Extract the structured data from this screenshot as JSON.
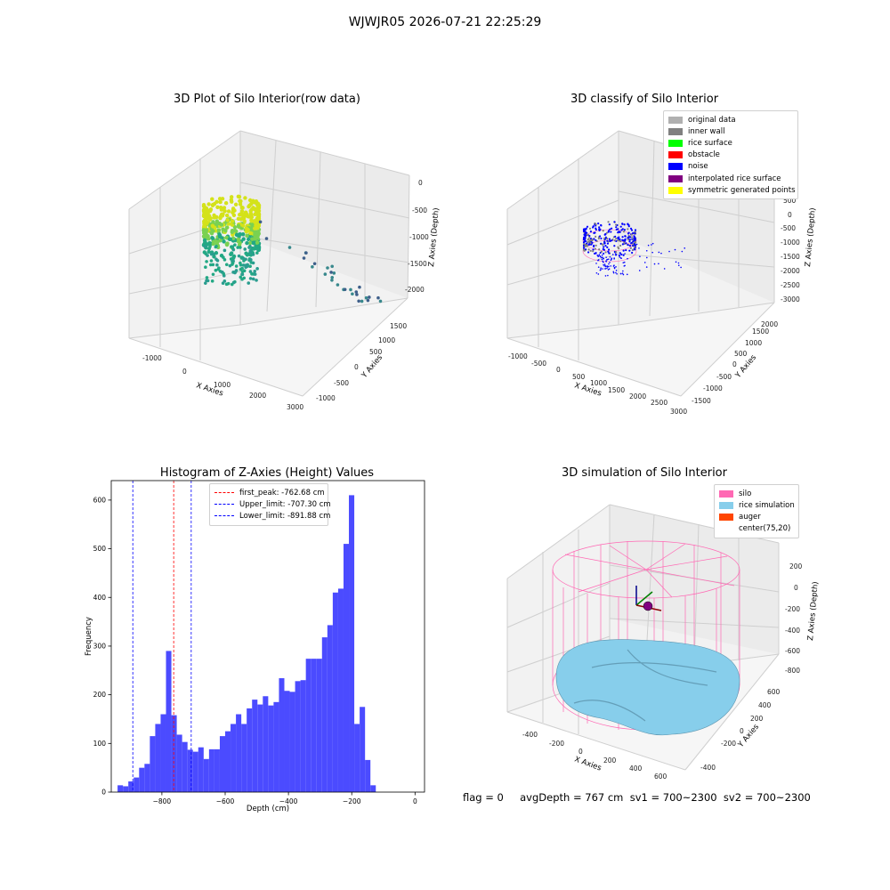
{
  "figure": {
    "suptitle": "WJWJR05 2026-07-21 22:25:29",
    "footer": "flag = 0     avgDepth = 767 cm  sv1 = 700~2300  sv2 = 700~2300"
  },
  "panels": {
    "raw": {
      "title": "3D Plot of Silo Interior(row data)",
      "xlabel": "X Axies",
      "ylabel": "Y Axies",
      "zlabel": "Z Axies (Depth)",
      "xticks": [
        "-1000",
        "0",
        "1000",
        "2000",
        "3000"
      ],
      "yticks": [
        "-1000",
        "-500",
        "0",
        "500",
        "1000",
        "1500"
      ],
      "zticks": [
        "0",
        "-500",
        "-1000",
        "-1500",
        "-2000"
      ]
    },
    "classify": {
      "title": "3D classify of Silo Interior",
      "xlabel": "X Axies",
      "ylabel": "Y Axies",
      "zlabel": "Z Axies (Depth)",
      "xticks": [
        "-1000",
        "-500",
        "0",
        "500",
        "1000",
        "1500",
        "2000",
        "2500",
        "3000"
      ],
      "yticks": [
        "-1500",
        "-1000",
        "-500",
        "0",
        "500",
        "1000",
        "1500",
        "2000"
      ],
      "zticks": [
        "500",
        "0",
        "-500",
        "-1000",
        "-1500",
        "-2000",
        "-2500",
        "-3000"
      ],
      "legend": [
        {
          "label": "original data",
          "color": "#b0b0b0"
        },
        {
          "label": "inner wall",
          "color": "#808080"
        },
        {
          "label": "rice surface",
          "color": "#00ff00"
        },
        {
          "label": "obstacle",
          "color": "#ff0000"
        },
        {
          "label": "noise",
          "color": "#0000ff"
        },
        {
          "label": "interpolated rice surface",
          "color": "#800080"
        },
        {
          "label": "symmetric generated points",
          "color": "#ffff00"
        }
      ]
    },
    "simulation": {
      "title": "3D simulation of Silo Interior",
      "xlabel": "X Axies",
      "ylabel": "Y Axies",
      "zlabel": "Z Axies (Depth)",
      "xticks": [
        "-400",
        "-200",
        "0",
        "200",
        "400",
        "600"
      ],
      "yticks": [
        "-400",
        "-200",
        "0",
        "200",
        "400",
        "600"
      ],
      "zticks": [
        "200",
        "0",
        "-200",
        "-400",
        "-600",
        "-800"
      ],
      "legend": [
        {
          "label": "silo",
          "color": "#ff69b4"
        },
        {
          "label": "rice simulation",
          "color": "#87ceeb"
        },
        {
          "label": "auger",
          "color": "#ff4500"
        },
        {
          "label": "center(75,20)",
          "color": ""
        }
      ]
    }
  },
  "chart_data": [
    {
      "type": "bar",
      "title": "Histogram of Z-Axies (Height) Values",
      "xlabel": "Depth (cm)",
      "ylabel": "Frequency",
      "xlim": [
        -960,
        30
      ],
      "ylim": [
        0,
        640
      ],
      "grid": false,
      "legend_placement": "top-center",
      "xticks": [
        -800,
        -600,
        -400,
        -200,
        0
      ],
      "yticks": [
        0,
        100,
        200,
        300,
        400,
        500,
        600
      ],
      "bin_edges": [
        -940,
        -923,
        -906,
        -889,
        -872,
        -855,
        -838,
        -821,
        -804,
        -787,
        -770,
        -753,
        -736,
        -719,
        -702,
        -685,
        -668,
        -651,
        -634,
        -617,
        -600,
        -583,
        -566,
        -549,
        -532,
        -515,
        -498,
        -481,
        -464,
        -447,
        -430,
        -413,
        -396,
        -379,
        -362,
        -345,
        -328,
        -311,
        -294,
        -277,
        -260,
        -243,
        -226,
        -209,
        -192,
        -175,
        -158,
        -141,
        -124,
        -107,
        -90,
        -73,
        -56,
        -39,
        -22,
        -5
      ],
      "values": [
        14,
        12,
        22,
        30,
        50,
        58,
        115,
        140,
        160,
        290,
        158,
        118,
        103,
        87,
        83,
        92,
        68,
        88,
        88,
        115,
        125,
        140,
        160,
        140,
        172,
        190,
        180,
        197,
        178,
        185,
        234,
        208,
        206,
        228,
        230,
        274,
        274,
        274,
        318,
        343,
        410,
        418,
        510,
        610,
        140,
        175,
        66,
        14,
        0,
        0,
        0,
        0,
        0,
        0,
        0
      ],
      "color": "#4b4bff",
      "vlines": [
        {
          "label": "first_peak: -762.68 cm",
          "x": -762.68,
          "color": "#ff0000"
        },
        {
          "label": "Upper_limit: -707.30 cm",
          "x": -707.3,
          "color": "#0000ff"
        },
        {
          "label": "Lower_limit: -891.88 cm",
          "x": -891.88,
          "color": "#0000ff"
        }
      ]
    }
  ]
}
